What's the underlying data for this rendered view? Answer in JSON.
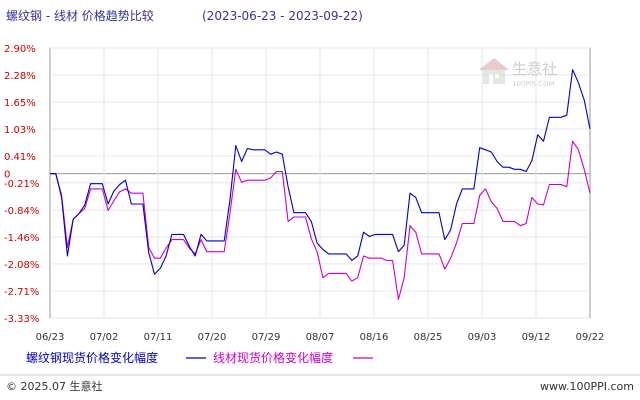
{
  "chart_data": {
    "type": "line",
    "title": "螺纹钢 - 线材 价格趋势比较",
    "date_range": "(2023-06-23 - 2023-09-22)",
    "y_ticks": [
      "2.90%",
      "2.28%",
      "1.65%",
      "1.03%",
      "0.41%",
      "0",
      "-0.21%",
      "-0.84%",
      "-1.46%",
      "-2.08%",
      "-2.71%",
      "-3.33%"
    ],
    "y_tick_values": [
      2.9,
      2.28,
      1.65,
      1.03,
      0.41,
      0,
      -0.21,
      -0.84,
      -1.46,
      -2.08,
      -2.71,
      -3.33
    ],
    "ylim": [
      -3.33,
      2.9
    ],
    "x_ticks": [
      "06/23",
      "07/02",
      "07/11",
      "07/20",
      "07/29",
      "08/07",
      "08/16",
      "08/25",
      "09/03",
      "09/12",
      "09/22"
    ],
    "grid": true,
    "legend_position": "bottom",
    "series": [
      {
        "name": "螺纹钢现货价格变化幅度",
        "color": "#0000cc",
        "values": [
          0,
          0,
          -0.55,
          -1.9,
          -1.05,
          -0.92,
          -0.72,
          -0.23,
          -0.23,
          -0.23,
          -0.7,
          -0.4,
          -0.25,
          -0.15,
          -0.7,
          -0.7,
          -0.7,
          -1.82,
          -2.32,
          -2.18,
          -1.9,
          -1.4,
          -1.4,
          -1.4,
          -1.68,
          -1.9,
          -1.4,
          -1.55,
          -1.55,
          -1.55,
          -1.55,
          -0.6,
          0.65,
          0.28,
          0.58,
          0.55,
          0.55,
          0.55,
          0.45,
          0.5,
          0.45,
          -0.3,
          -0.9,
          -0.9,
          -0.9,
          -1.1,
          -1.6,
          -1.75,
          -1.85,
          -1.85,
          -1.85,
          -1.85,
          -2.0,
          -1.9,
          -1.35,
          -1.45,
          -1.4,
          -1.4,
          -1.4,
          -1.4,
          -1.8,
          -1.65,
          -0.45,
          -0.55,
          -0.9,
          -0.9,
          -0.9,
          -0.9,
          -1.52,
          -1.3,
          -0.7,
          -0.35,
          -0.35,
          -0.35,
          0.6,
          0.55,
          0.5,
          0.28,
          0.15,
          0.15,
          0.1,
          0.1,
          0.05,
          0.3,
          0.9,
          0.75,
          1.3,
          1.3,
          1.3,
          1.35,
          2.4,
          2.1,
          1.7,
          1.03
        ]
      },
      {
        "name": "线材现货价格变化幅度",
        "color": "#cc00cc",
        "values": [
          0,
          0,
          -0.5,
          -1.7,
          -1.05,
          -0.92,
          -0.8,
          -0.35,
          -0.35,
          -0.35,
          -0.85,
          -0.62,
          -0.42,
          -0.35,
          -0.45,
          -0.45,
          -0.45,
          -1.7,
          -1.95,
          -1.95,
          -1.72,
          -1.52,
          -1.52,
          -1.52,
          -1.72,
          -1.85,
          -1.52,
          -1.8,
          -1.8,
          -1.8,
          -1.8,
          -0.9,
          0.1,
          -0.2,
          -0.15,
          -0.15,
          -0.15,
          -0.15,
          -0.1,
          0.05,
          0.05,
          -1.1,
          -1.0,
          -1.0,
          -1.0,
          -1.5,
          -1.8,
          -2.4,
          -2.3,
          -2.3,
          -2.3,
          -2.3,
          -2.48,
          -2.4,
          -1.9,
          -1.95,
          -1.95,
          -1.95,
          -2.0,
          -2.0,
          -2.9,
          -2.4,
          -1.2,
          -1.35,
          -1.85,
          -1.85,
          -1.85,
          -1.85,
          -2.2,
          -1.95,
          -1.6,
          -1.15,
          -1.15,
          -1.15,
          -0.5,
          -0.35,
          -0.65,
          -0.8,
          -1.1,
          -1.1,
          -1.1,
          -1.2,
          -1.15,
          -0.55,
          -0.7,
          -0.72,
          -0.25,
          -0.25,
          -0.25,
          -0.3,
          0.75,
          0.55,
          0.1,
          -0.45
        ]
      }
    ]
  },
  "watermark": {
    "text": "生意社",
    "url_text": "100PPI.COM"
  },
  "footer": {
    "left": "© 2025.07 生意社",
    "right": "www.100PPI.com"
  }
}
